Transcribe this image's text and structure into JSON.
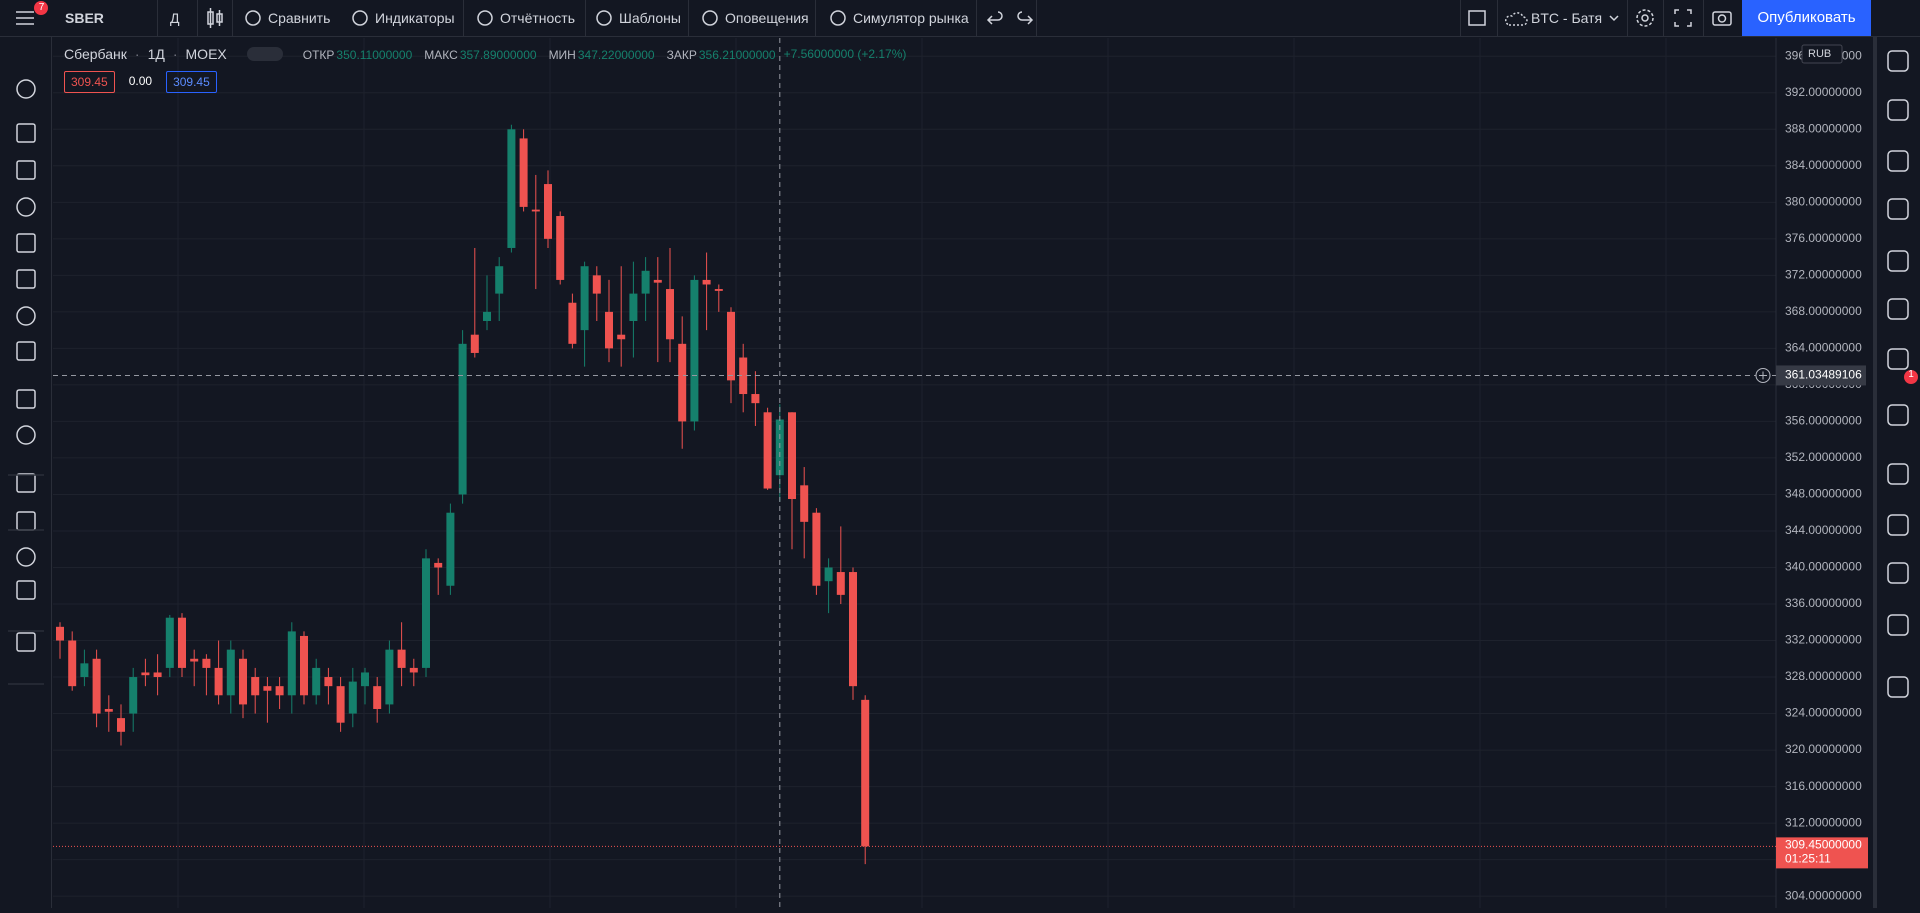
{
  "toolbar": {
    "badge": "7",
    "symbol": "SBER",
    "interval": "Д",
    "items": [
      "Сравнить",
      "Индикаторы",
      "Отчётность",
      "Шаблоны",
      "Оповещения",
      "Симулятор рынка"
    ],
    "layout": "BTC - Батя",
    "publish": "Опубликовать"
  },
  "sidebar": {
    "badge": "1"
  },
  "legend": {
    "name": "Сбербанк",
    "interval": "1Д",
    "exchange": "MOEX",
    "ohlc": [
      {
        "label": "ОТКР",
        "value": "350.11000000"
      },
      {
        "label": "МАКС",
        "value": "357.89000000"
      },
      {
        "label": "МИН",
        "value": "347.22000000"
      },
      {
        "label": "ЗАКР",
        "value": "356.21000000"
      }
    ],
    "change": "+7.56000000 (+2.17%)",
    "bid": "309.45",
    "spread": "0.00",
    "ask": "309.45"
  },
  "chart_data": {
    "type": "candlestick",
    "currency": "RUB",
    "up_color": "#15806c",
    "down_color": "#ef5350",
    "grid": true,
    "open": [
      333.5,
      332,
      328,
      330,
      324.5,
      323.5,
      324,
      328.5,
      328.5,
      329,
      334.5,
      330,
      330,
      329,
      326,
      330,
      328,
      327,
      327,
      326,
      332.5,
      326,
      328,
      327,
      324,
      327,
      327,
      325,
      331,
      329,
      329,
      340.5,
      338,
      348,
      365.5,
      367,
      370,
      375,
      387,
      379.2,
      382,
      378.5,
      369,
      366,
      372,
      368,
      365.5,
      367,
      370,
      371.5,
      370.5,
      364.5,
      356,
      371.5,
      370.5,
      368,
      363,
      359,
      357,
      350.11,
      357,
      349,
      346,
      338.5,
      339.5,
      339.5,
      325.5
    ],
    "high": [
      334,
      333,
      331,
      331,
      326,
      325,
      329,
      330,
      330.5,
      334.8,
      335,
      331,
      330.5,
      332,
      332,
      331,
      329,
      328,
      328,
      334,
      333,
      330,
      329,
      328,
      329,
      329,
      328,
      332,
      334,
      330,
      342,
      341,
      347,
      366,
      375,
      372,
      374,
      388.5,
      388,
      383,
      383.5,
      379,
      370,
      373.5,
      373,
      371.5,
      373,
      373.5,
      374,
      374,
      375,
      367.5,
      372,
      374.5,
      371,
      368.5,
      364.5,
      361.5,
      357.5,
      357.89,
      357,
      351,
      346.5,
      341,
      344.5,
      340,
      326
    ],
    "low": [
      330,
      326.5,
      327,
      322.5,
      322,
      320.5,
      322,
      327,
      326,
      328,
      328,
      327,
      326,
      325,
      324,
      323.5,
      324,
      323,
      324.5,
      324,
      325,
      325,
      325,
      322,
      322.5,
      325,
      323,
      324,
      327,
      327,
      328,
      337,
      337,
      347,
      363,
      366,
      367,
      374.5,
      379,
      370.5,
      375,
      371,
      364,
      362,
      367,
      362.5,
      362,
      363,
      367,
      362.5,
      362.5,
      353,
      355,
      366,
      368,
      358,
      357,
      355.5,
      348.5,
      347.22,
      342,
      341,
      337,
      335,
      336,
      325.5,
      307.5
    ],
    "close": [
      332,
      327,
      329.5,
      324,
      324.2,
      322,
      328,
      328.2,
      328,
      334.5,
      329,
      329.7,
      329,
      326,
      331,
      325,
      326,
      326.5,
      326,
      333,
      326,
      329,
      327,
      323,
      327.5,
      328.5,
      324.5,
      331,
      329,
      328.5,
      341,
      340,
      346,
      364.5,
      363.5,
      368,
      373,
      388,
      379.5,
      379,
      376,
      371.5,
      364.5,
      373,
      370,
      364,
      365,
      370,
      372.5,
      371.2,
      365,
      356,
      371.5,
      371,
      370.3,
      360.5,
      359,
      358,
      348.65,
      356.21,
      347.5,
      345,
      338,
      340,
      337,
      327,
      309.45
    ],
    "ylim": [
      302.7,
      398
    ],
    "yticks": [
      {
        "value": 304,
        "label": "304.00000000"
      },
      {
        "value": 308,
        "label": "308.00000000"
      },
      {
        "value": 312,
        "label": "312.00000000"
      },
      {
        "value": 316,
        "label": "316.00000000"
      },
      {
        "value": 320,
        "label": "320.00000000"
      },
      {
        "value": 324,
        "label": "324.00000000"
      },
      {
        "value": 328,
        "label": "328.00000000"
      },
      {
        "value": 332,
        "label": "332.00000000"
      },
      {
        "value": 336,
        "label": "336.00000000"
      },
      {
        "value": 340,
        "label": "340.00000000"
      },
      {
        "value": 344,
        "label": "344.00000000"
      },
      {
        "value": 348,
        "label": "348.00000000"
      },
      {
        "value": 352,
        "label": "352.00000000"
      },
      {
        "value": 356,
        "label": "356.00000000"
      },
      {
        "value": 360,
        "label": "360.00000000"
      },
      {
        "value": 364,
        "label": "364.00000000"
      },
      {
        "value": 368,
        "label": "368.00000000"
      },
      {
        "value": 372,
        "label": "372.00000000"
      },
      {
        "value": 376,
        "label": "376.00000000"
      },
      {
        "value": 380,
        "label": "380.00000000"
      },
      {
        "value": 384,
        "label": "384.00000000"
      },
      {
        "value": 388,
        "label": "388.00000000"
      },
      {
        "value": 392,
        "label": "392.00000000"
      },
      {
        "value": 396,
        "label": "396.00000000"
      }
    ],
    "crosshair": {
      "value": 361.03489106,
      "label": "361.03489106",
      "index": 59
    },
    "last_price": {
      "value": 309.45,
      "label": "309.45000000"
    },
    "countdown": "01:25:11"
  }
}
